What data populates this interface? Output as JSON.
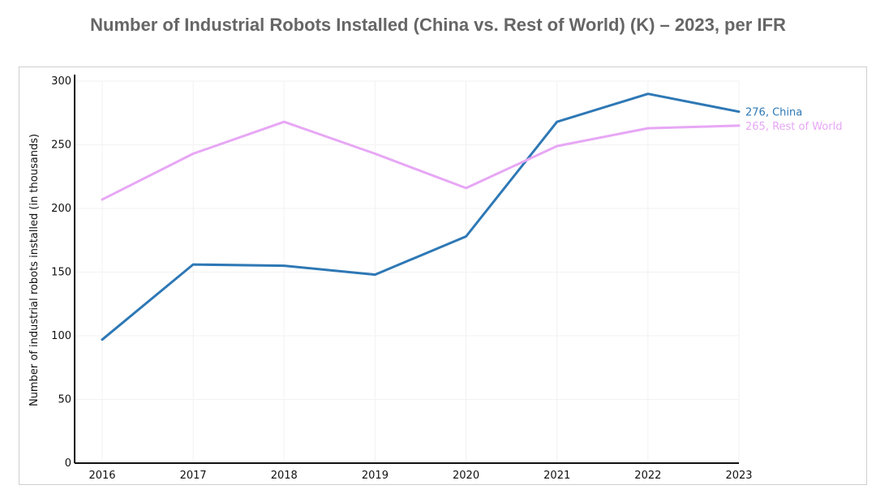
{
  "chart_data": {
    "type": "line",
    "title": "Number of Industrial Robots Installed (China vs. Rest of World) (K) – 2023, per IFR",
    "xlabel": "",
    "ylabel": "Number of industrial robots installed (in thousands)",
    "x": [
      "2016",
      "2017",
      "2018",
      "2019",
      "2020",
      "2021",
      "2022",
      "2023"
    ],
    "ylim": [
      0,
      300
    ],
    "yticks": [
      "0",
      "50",
      "100",
      "150",
      "200",
      "250",
      "300"
    ],
    "grid": true,
    "series": [
      {
        "name": "China",
        "color": "#2e78b5",
        "values": [
          97,
          156,
          155,
          148,
          178,
          268,
          290,
          276
        ],
        "end_value": "276",
        "end_label": "276, China"
      },
      {
        "name": "Rest of World",
        "color": "#e7a7f5",
        "values": [
          207,
          243,
          268,
          243,
          216,
          249,
          263,
          265
        ],
        "end_value": "265",
        "end_label": "265, Rest of World"
      }
    ]
  }
}
